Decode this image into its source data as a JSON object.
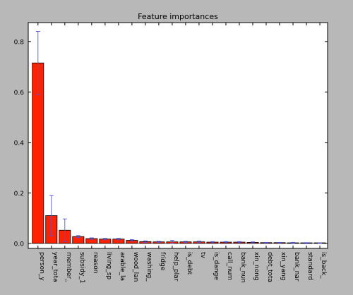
{
  "chart_data": {
    "type": "bar",
    "title": "Feature importances",
    "xlabel": "",
    "ylabel": "",
    "ylim": [
      -0.02,
      0.875
    ],
    "yticks": [
      "0.0",
      "0.2",
      "0.4",
      "0.6",
      "0.8"
    ],
    "ytick_values": [
      0.0,
      0.2,
      0.4,
      0.6,
      0.8
    ],
    "grid": false,
    "categories": [
      "person_y",
      "year_tota",
      "member_",
      "subsidy_1",
      "reason",
      "living_sp",
      "arable_la",
      "wood_lan",
      "washing_",
      "fridge",
      "help_plar",
      "is_debt",
      "tv",
      "is_dange",
      "call_num",
      "bank_nun",
      "xin_nong",
      "debt_tota",
      "xin_yang",
      "bank_nar",
      "standard",
      "is_back_"
    ],
    "values": [
      0.715,
      0.11,
      0.052,
      0.027,
      0.019,
      0.017,
      0.017,
      0.012,
      0.007,
      0.006,
      0.006,
      0.006,
      0.006,
      0.005,
      0.005,
      0.005,
      0.004,
      0.003,
      0.003,
      0.002,
      0.001,
      0.001
    ],
    "errors": [
      0.125,
      0.08,
      0.045,
      0.004,
      0.003,
      0.003,
      0.003,
      0.003,
      0.003,
      0.002,
      0.006,
      0.002,
      0.003,
      0.002,
      0.002,
      0.002,
      0.002,
      0.001,
      0.001,
      0.002,
      0.002,
      0.001
    ],
    "bar_color": "#ff2200",
    "error_color": "#5555dd",
    "background_color": "#ffffff",
    "figure_color": "#b8b8b8"
  }
}
